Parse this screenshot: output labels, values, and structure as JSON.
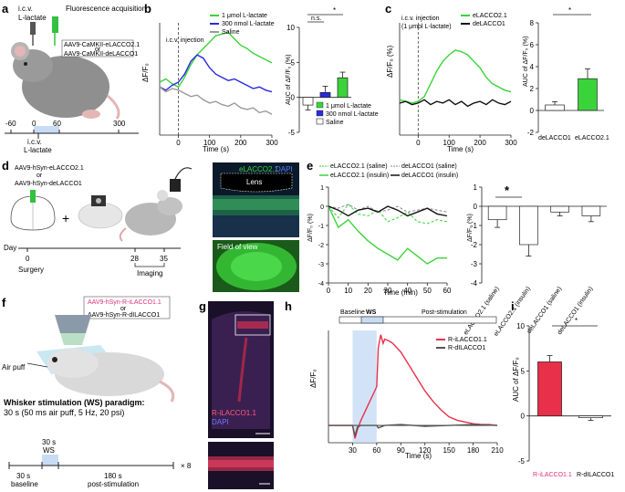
{
  "panels": {
    "a": {
      "letter": "a",
      "icv_label": "i.c.v.",
      "lactate_label": "L-lactate",
      "fluor_label": "Fluorescence acquisition",
      "virus_1": "AAV9-CaMKII-eLACCO2.1",
      "virus_or": "or",
      "virus_2": "AAV9-CaMKII-deLACCO1",
      "ticks": [
        "-60",
        "0",
        "60",
        "300"
      ],
      "icv_bottom": "i.c.v.",
      "lactate_bottom": "L-lactate"
    },
    "b": {
      "letter": "b",
      "injection_label": "i.c.v. injection",
      "ylabel": "ΔF/F₀",
      "xlabel": "Time (s)",
      "legend": [
        "1 μmol L-lactate",
        "300 nmol L-lactate",
        "Saline"
      ],
      "bar_legend": [
        "1 μmol L-lactate",
        "300 nmol L-lactate",
        "Saline"
      ],
      "bar_ylabel": "AUC of ΔF/F₀ (%)",
      "sig_ns": "n.s.",
      "sig_star": "*"
    },
    "c": {
      "letter": "c",
      "injection_label_1": "i.c.v. injection",
      "injection_label_2": "(1 μmol L-lactate)",
      "ylabel": "ΔF/F₀ (%)",
      "xlabel": "Time (s)",
      "legend": [
        "eLACCO2.1",
        "deLACCO1"
      ],
      "bar_ylabel": "AUC of ΔF/F₀ (%)",
      "categories": [
        "deLACCO1",
        "eLACCO2.1"
      ],
      "sig_star": "*"
    },
    "d": {
      "letter": "d",
      "virus_1": "AAV9-hSyn-eLACCO2.1",
      "virus_or": "or",
      "virus_2": "AAV9-hSyn-deLACCO1",
      "day_label": "Day",
      "day_ticks": [
        "0",
        "28",
        "35"
      ],
      "surgery": "Surgery",
      "imaging": "Imaging",
      "micro_title_1": "eLACCO2.1",
      "micro_title_2": "DAPI",
      "lens_label": "Lens",
      "fov_label": "Field of view"
    },
    "e": {
      "letter": "e",
      "legend": [
        "eLACCO2.1 (saline)",
        "eLACCO2.1 (insulin)",
        "deLACCO1 (saline)",
        "deLACCO1 (insulin)"
      ],
      "ylabel": "ΔF/F₀ (%)",
      "xlabel": "Time (min)",
      "bar_ylabel": "ΔF/F₀ (%)",
      "bar_categories": [
        "eLACCO2.1 (saline)",
        "eLACCO2.1 (insulin)",
        "deLACCO1 (saline)",
        "deLACCO1 (insulin)"
      ],
      "sig_star": "*"
    },
    "f": {
      "letter": "f",
      "virus_1": "AAV9-hSyn-R-iLACCO1.1",
      "virus_or": "or",
      "virus_2": "AAV9-hSyn-R-dILACCO1",
      "air_puff": "Air puff",
      "ws_title": "Whisker stimulation (WS) paradigm:",
      "ws_desc": "30 s (50 ms air puff, 5 Hz, 20 psi)",
      "ws_30s": "30 s",
      "ws_label": "WS",
      "baseline_1": "30 s",
      "baseline_2": "baseline",
      "post_1": "180 s",
      "post_2": "post-stimulation",
      "repeat": "× 8"
    },
    "g": {
      "letter": "g",
      "label_1": "R-iLACCO1.1",
      "label_2": "DAPI"
    },
    "h": {
      "letter": "h",
      "bar_labels": [
        "Baseline",
        "WS",
        "Post-stimulation"
      ],
      "legend": [
        "R-iLACCO1.1",
        "R-dILACCO1"
      ],
      "ylabel": "ΔF/F₀",
      "xlabel": "Time (s)"
    },
    "i": {
      "letter": "i",
      "ylabel": "AUC of ΔF/F₀",
      "categories": [
        "R-iLACCO1.1",
        "R-dILACCO1"
      ],
      "sig_star": "*"
    }
  },
  "colors": {
    "green": "#3ad33a",
    "blue": "#2a2ae0",
    "gray": "#9a9a9a",
    "red": "#e8304a",
    "pink": "#e0307a",
    "lightblue": "#c8dcf5"
  },
  "chart_data": [
    {
      "id": "b-trace",
      "type": "line",
      "xlim": [
        -60,
        300
      ],
      "ylim": [
        -3,
        4
      ],
      "x_ticks": [
        0,
        100,
        200,
        300
      ],
      "series": [
        {
          "name": "1 μmol L-lactate",
          "x": [
            -60,
            -40,
            -20,
            0,
            20,
            40,
            60,
            80,
            100,
            120,
            140,
            160,
            180,
            200,
            220,
            240,
            260,
            280,
            300
          ],
          "values": [
            0.3,
            0.5,
            0.2,
            0.0,
            0.6,
            1.4,
            2.0,
            2.4,
            2.8,
            3.2,
            3.3,
            3.4,
            3.0,
            2.6,
            2.4,
            2.1,
            1.9,
            1.7,
            1.5
          ]
        },
        {
          "name": "300 nmol L-lactate",
          "x": [
            -60,
            -40,
            -20,
            0,
            20,
            40,
            60,
            80,
            100,
            120,
            140,
            160,
            180,
            200,
            220,
            240,
            260,
            280,
            300
          ],
          "values": [
            0.0,
            -0.2,
            0.1,
            0.3,
            0.8,
            1.6,
            2.0,
            1.8,
            1.2,
            0.8,
            0.6,
            0.4,
            0.5,
            0.3,
            0.1,
            -0.1,
            0.0,
            -0.2,
            -0.3
          ]
        },
        {
          "name": "Saline",
          "x": [
            -60,
            -40,
            -20,
            0,
            20,
            40,
            60,
            80,
            100,
            120,
            140,
            160,
            180,
            200,
            220,
            240,
            260,
            280,
            300
          ],
          "values": [
            0.0,
            -0.3,
            -0.1,
            -0.2,
            -0.4,
            -0.6,
            -0.5,
            -0.8,
            -1.0,
            -0.9,
            -1.1,
            -1.2,
            -1.0,
            -1.3,
            -1.4,
            -1.3,
            -1.6,
            -1.5,
            -1.7
          ]
        }
      ]
    },
    {
      "id": "b-bar",
      "type": "bar",
      "categories": [
        "Saline",
        "300 nmol L-lactate",
        "1 μmol L-lactate"
      ],
      "values": [
        -1.1,
        0.7,
        2.8
      ],
      "errors": [
        0.7,
        0.9,
        0.8
      ],
      "ylim": [
        -5,
        10
      ],
      "y_ticks": [
        -5,
        0,
        5,
        10
      ]
    },
    {
      "id": "c-trace",
      "type": "line",
      "xlim": [
        -60,
        300
      ],
      "x_ticks": [
        0,
        100,
        200,
        300
      ],
      "series": [
        {
          "name": "eLACCO2.1",
          "x": [
            -60,
            -40,
            -20,
            0,
            20,
            40,
            60,
            80,
            100,
            120,
            140,
            160,
            180,
            200,
            220,
            240,
            260,
            280,
            300
          ],
          "values": [
            0.2,
            0.1,
            0.0,
            0.1,
            0.4,
            1.2,
            2.0,
            2.6,
            3.0,
            3.3,
            3.2,
            3.0,
            2.6,
            2.2,
            1.6,
            1.2,
            1.0,
            0.8,
            0.7
          ]
        },
        {
          "name": "deLACCO1",
          "x": [
            -60,
            -40,
            -20,
            0,
            20,
            40,
            60,
            80,
            100,
            120,
            140,
            160,
            180,
            200,
            220,
            240,
            260,
            280,
            300
          ],
          "values": [
            0.0,
            0.1,
            -0.1,
            0.0,
            0.2,
            -0.1,
            0.1,
            0.0,
            0.2,
            -0.1,
            0.1,
            -0.2,
            0.0,
            0.1,
            -0.1,
            0.2,
            0.0,
            -0.1,
            0.1
          ]
        }
      ]
    },
    {
      "id": "c-bar",
      "type": "bar",
      "categories": [
        "deLACCO1",
        "eLACCO2.1"
      ],
      "values": [
        0.5,
        2.9
      ],
      "errors": [
        0.3,
        0.9
      ],
      "ylim": [
        -2,
        8
      ],
      "y_ticks": [
        -2,
        0,
        2,
        4,
        6,
        8
      ]
    },
    {
      "id": "e-trace",
      "type": "line",
      "xlim": [
        0,
        60
      ],
      "ylim": [
        -4,
        1
      ],
      "x_ticks": [
        0,
        10,
        20,
        30,
        40,
        50,
        60
      ],
      "y_ticks": [
        1,
        0,
        -1,
        -2,
        -3,
        -4
      ],
      "series": [
        {
          "name": "eLACCO2.1 (saline)",
          "x": [
            0,
            5,
            10,
            15,
            20,
            25,
            30,
            35,
            40,
            45,
            50,
            55,
            60
          ],
          "values": [
            0.0,
            -0.6,
            0.1,
            -0.4,
            -0.5,
            -0.2,
            -0.8,
            -0.6,
            -0.3,
            -0.8,
            -0.9,
            -0.7,
            -0.8
          ]
        },
        {
          "name": "eLACCO2.1 (insulin)",
          "x": [
            0,
            5,
            10,
            15,
            20,
            25,
            30,
            35,
            40,
            45,
            50,
            55,
            60
          ],
          "values": [
            0.0,
            -1.1,
            -0.7,
            -1.3,
            -1.8,
            -2.2,
            -2.5,
            -2.8,
            -2.2,
            -2.6,
            -3.0,
            -2.7,
            -2.7
          ]
        },
        {
          "name": "deLACCO1 (saline)",
          "x": [
            0,
            5,
            10,
            15,
            20,
            25,
            30,
            35,
            40,
            45,
            50,
            55,
            60
          ],
          "values": [
            0.0,
            -0.1,
            0.1,
            -0.2,
            0.0,
            -0.3,
            -0.2,
            0.0,
            -0.3,
            -0.2,
            -0.1,
            -0.2,
            -0.3
          ]
        },
        {
          "name": "deLACCO1 (insulin)",
          "x": [
            0,
            5,
            10,
            15,
            20,
            25,
            30,
            35,
            40,
            45,
            50,
            55,
            60
          ],
          "values": [
            0.0,
            -0.2,
            -0.5,
            -0.2,
            -0.1,
            -0.3,
            0.0,
            -0.2,
            -0.5,
            -0.3,
            -0.1,
            -0.4,
            -0.5
          ]
        }
      ]
    },
    {
      "id": "e-bar",
      "type": "bar",
      "categories": [
        "eLACCO2.1 (saline)",
        "eLACCO2.1 (insulin)",
        "deLACCO1 (saline)",
        "deLACCO1 (insulin)"
      ],
      "values": [
        -0.7,
        -2.0,
        -0.3,
        -0.5
      ],
      "errors": [
        0.4,
        0.6,
        0.2,
        0.3
      ],
      "ylim": [
        -4,
        1
      ],
      "y_ticks": [
        1,
        0,
        -1,
        -2,
        -3,
        -4
      ]
    },
    {
      "id": "h-trace",
      "type": "line",
      "xlim": [
        0,
        210
      ],
      "ylim": [
        -0.2,
        1.1
      ],
      "x_ticks": [
        30,
        60,
        90,
        120,
        150,
        180,
        210
      ],
      "series": [
        {
          "name": "R-iLACCO1.1",
          "x": [
            0,
            30,
            33,
            36,
            40,
            45,
            50,
            55,
            60,
            62,
            65,
            68,
            70,
            75,
            80,
            90,
            100,
            110,
            120,
            130,
            140,
            150,
            160,
            170,
            180,
            190,
            200,
            210
          ],
          "values": [
            0.0,
            0.0,
            -0.15,
            -0.05,
            0.05,
            0.15,
            0.25,
            0.35,
            0.45,
            0.9,
            1.05,
            0.95,
            1.0,
            0.98,
            0.95,
            0.85,
            0.7,
            0.55,
            0.4,
            0.28,
            0.18,
            0.1,
            0.06,
            0.04,
            0.02,
            0.01,
            0.01,
            0.0
          ]
        },
        {
          "name": "R-dILACCO1",
          "x": [
            0,
            30,
            33,
            36,
            40,
            60,
            62,
            70,
            90,
            120,
            150,
            180,
            210
          ],
          "values": [
            0.0,
            0.0,
            -0.12,
            -0.02,
            0.0,
            0.0,
            -0.03,
            0.0,
            0.01,
            -0.01,
            0.0,
            0.01,
            0.0
          ]
        }
      ]
    },
    {
      "id": "i-bar",
      "type": "bar",
      "categories": [
        "R-iLACCO1.1",
        "R-dILACCO1"
      ],
      "values": [
        6.0,
        -0.2
      ],
      "errors": [
        0.7,
        0.3
      ],
      "ylim": [
        -5,
        10
      ],
      "y_ticks": [
        -5,
        0,
        5,
        10
      ]
    }
  ]
}
